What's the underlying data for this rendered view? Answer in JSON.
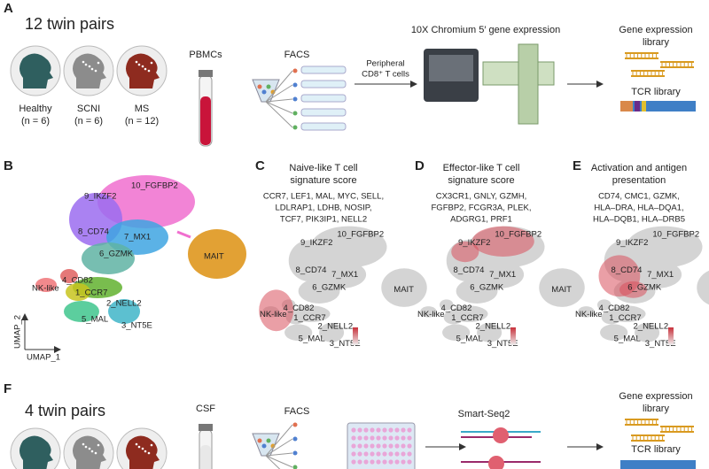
{
  "A": {
    "label": "A",
    "title": "12 twin pairs",
    "groups": [
      {
        "name": "Healthy",
        "n": "(n = 6)"
      },
      {
        "name": "SCNI",
        "n": "(n = 6)"
      },
      {
        "name": "MS",
        "n": "(n = 12)"
      }
    ],
    "sample": "PBMCs",
    "sorting": "FACS",
    "arrow_label": [
      "Peripheral",
      "CD8⁺ T cells"
    ],
    "platform": "10X Chromium 5′ gene expression",
    "gex_library": [
      "Gene expression",
      "library"
    ],
    "tcr_library": "TCR library"
  },
  "B": {
    "label": "B",
    "clusters": [
      "10_FGFBP2",
      "9_IKZF2",
      "8_CD74",
      "7_MX1",
      "6_GZMK",
      "MAIT",
      "4_CD82",
      "NK-like",
      "1_CCR7",
      "2_NELL2",
      "5_MAL",
      "3_NT5E"
    ],
    "x_axis": "UMAP_1",
    "y_axis": "UMAP_2"
  },
  "panels": [
    {
      "label": "C",
      "title": [
        "Naive-like T cell",
        "signature score"
      ],
      "genes": [
        "CCR7, LEF1, MAL, MYC, SELL,",
        "LDLRAP1, LDHB, NOSIP,",
        "TCF7, PIK3IP1, NELL2"
      ]
    },
    {
      "label": "D",
      "title": [
        "Effector-like T cell",
        "signature score"
      ],
      "genes": [
        "CX3CR1, GNLY, GZMH,",
        "FGFBP2, FCGR3A, PLEK,",
        "ADGRG1, PRF1"
      ]
    },
    {
      "label": "E",
      "title": [
        "Activation and antigen",
        "presentation"
      ],
      "genes": [
        "CD74, CMC1, GZMK,",
        "HLA–DRA, HLA–DQA1,",
        "HLA–DQB1, HLA–DRB5"
      ]
    }
  ],
  "F": {
    "label": "F",
    "title": "4 twin pairs",
    "sample": "CSF",
    "sorting": "FACS",
    "platform": "Smart-Seq2",
    "gex_library": [
      "Gene expression",
      "library"
    ],
    "tcr_library": "TCR library"
  }
}
